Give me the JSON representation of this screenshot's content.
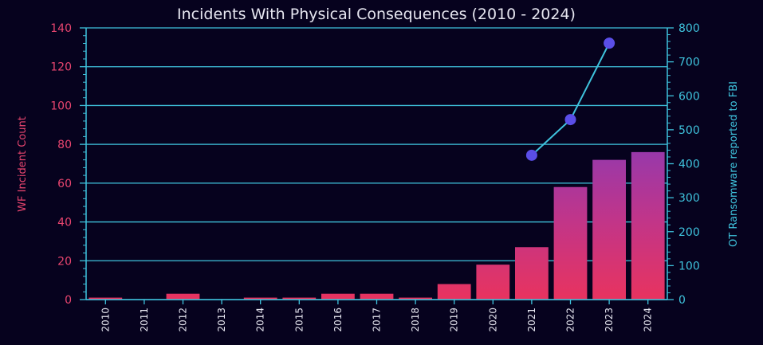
{
  "chart_data": {
    "type": "bar",
    "title": "Incidents With Physical Consequences (2010 - 2024)",
    "categories": [
      "2010",
      "2011",
      "2012",
      "2013",
      "2014",
      "2015",
      "2016",
      "2017",
      "2018",
      "2019",
      "2020",
      "2021",
      "2022",
      "2023",
      "2024"
    ],
    "ylabel": "WF Incident Count",
    "ylabel_right": "OT Ransomware reported to FBI",
    "ylim": [
      0,
      140
    ],
    "ylim_right": [
      0,
      800
    ],
    "yticks": [
      0,
      20,
      40,
      60,
      80,
      100,
      120,
      140
    ],
    "yticks_right": [
      0,
      100,
      200,
      300,
      400,
      500,
      600,
      700,
      800
    ],
    "grid": true,
    "series": [
      {
        "type": "bar",
        "axis": "left",
        "values": [
          1,
          0,
          3,
          0,
          1,
          1,
          3,
          3,
          1,
          8,
          18,
          27,
          58,
          72,
          76
        ]
      },
      {
        "type": "line",
        "axis": "right",
        "x": [
          "2021",
          "2022",
          "2023"
        ],
        "values": [
          425,
          530,
          755
        ]
      }
    ]
  },
  "colors": {
    "background": "#06021e",
    "grid": "#3fc3dd",
    "bar_bottom": "#e8335f",
    "bar_top": "#4d3fe6",
    "line": "#3fc3dd",
    "marker": "#5a4ee8",
    "left_axis_text": "#e8456f",
    "right_axis_text": "#3fc3dd",
    "title_text": "#e6e6f0"
  }
}
